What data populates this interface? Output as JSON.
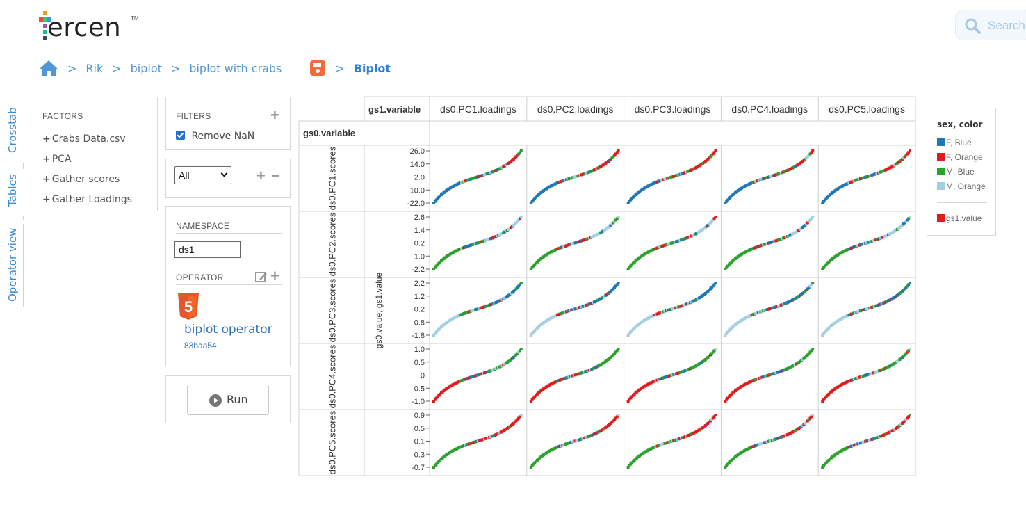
{
  "app": {
    "logo_text": "ercen",
    "logo_tm": "TM",
    "search_placeholder": "Search"
  },
  "breadcrumb": {
    "items": [
      "Rik",
      "biplot",
      "biplot with crabs"
    ],
    "current": "Biplot",
    "separator": ">"
  },
  "side_tabs": [
    "Crosstab",
    "Tables",
    "Operator view"
  ],
  "factors": {
    "title": "FACTORS",
    "items": [
      "Crabs Data.csv",
      "PCA",
      "Gather scores",
      "Gather Loadings"
    ],
    "plus": "+"
  },
  "filters": {
    "title": "FILTERS",
    "remove_nan_label": "Remove NaN",
    "remove_nan_checked": true
  },
  "select": {
    "value": "All"
  },
  "namespace": {
    "title": "NAMESPACE",
    "value": "ds1",
    "operator_title": "OPERATOR",
    "operator_name": "biplot operator",
    "operator_version": "83baa54",
    "html5_badge": "5"
  },
  "run": {
    "label": "Run"
  },
  "crosstab": {
    "col_factor_label": "gs1.variable",
    "row_factor_label": "gs0.variable",
    "y_axis_label": "gs0.value, gs1.value",
    "columns": [
      "ds0.PC1.loadings",
      "ds0.PC2.loadings",
      "ds0.PC3.loadings",
      "ds0.PC4.loadings",
      "ds0.PC5.loadings"
    ],
    "rows": [
      "ds0.PC1.scores",
      "ds0.PC2.scores",
      "ds0.PC3.scores",
      "ds0.PC4.scores",
      "ds0.PC5.scores"
    ],
    "row_ticks": [
      [
        "26.0",
        "14.0",
        "2.0",
        "-10.0",
        "-22.0"
      ],
      [
        "2.6",
        "1.4",
        "0.2",
        "-1.0",
        "-2.2"
      ],
      [
        "2.2",
        "1.2",
        "0.2",
        "-0.8",
        "-1.8"
      ],
      [
        "1.0",
        "0.5",
        "0",
        "-0.5",
        "-1.0"
      ],
      [
        "0.9",
        "0.5",
        "0.1",
        "-0.3",
        "-0.7"
      ]
    ]
  },
  "legend": {
    "title": "sex, color",
    "items": [
      {
        "label": "F, Blue",
        "color": "#1f77b4"
      },
      {
        "label": "F, Orange",
        "color": "#e31a1c"
      },
      {
        "label": "M, Blue",
        "color": "#2ca02c"
      },
      {
        "label": "M, Orange",
        "color": "#a6cee3"
      }
    ],
    "value_item": {
      "label": "gs1.value",
      "color": "#e31a1c"
    }
  },
  "colors": {
    "accent": "#4f97d6",
    "save_icon": "#f26b3a",
    "html5": "#e4572e"
  }
}
